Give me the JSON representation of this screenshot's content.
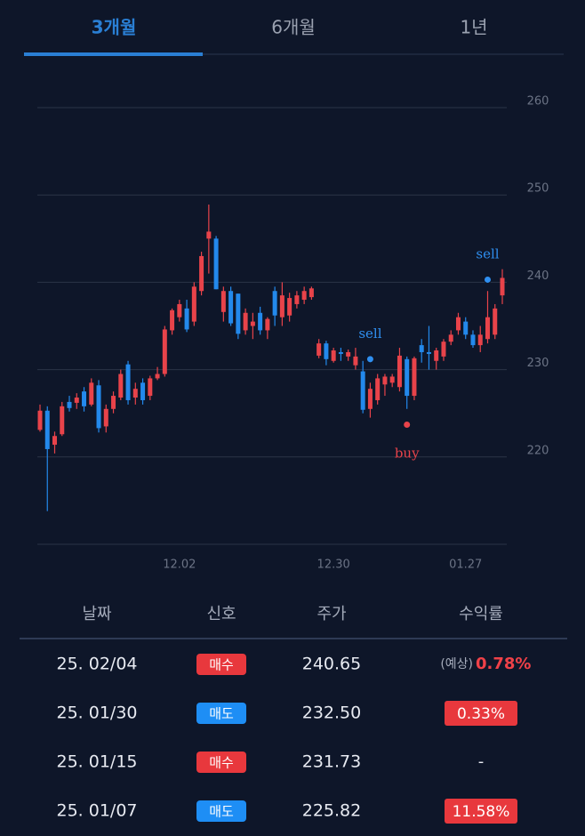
{
  "tabs": [
    "3개월",
    "6개월",
    "1년"
  ],
  "active_tab": 0,
  "chart_data": {
    "type": "candlestick",
    "up_color": "#e8434a",
    "down_color": "#2389ec",
    "ylim": [
      210,
      260
    ],
    "yticks": [
      220,
      230,
      240,
      250,
      260
    ],
    "grid": true,
    "categories": [
      null,
      null,
      null,
      null,
      null,
      null,
      null,
      null,
      null,
      null,
      null,
      null,
      null,
      null,
      null,
      null,
      null,
      null,
      null,
      "12.02",
      null,
      null,
      null,
      null,
      null,
      null,
      null,
      null,
      null,
      null,
      null,
      null,
      null,
      null,
      null,
      null,
      null,
      null,
      null,
      null,
      "12.30",
      null,
      null,
      null,
      null,
      null,
      null,
      null,
      null,
      null,
      null,
      null,
      null,
      null,
      null,
      null,
      null,
      null,
      "01.27",
      null,
      null,
      null,
      null,
      null
    ],
    "open": [
      223.1,
      225.3,
      221.4,
      222.6,
      226.3,
      226.2,
      227.5,
      226.0,
      228.2,
      223.5,
      225.5,
      226.8,
      230.6,
      226.8,
      228.5,
      227.0,
      229.0,
      229.5,
      234.5,
      236.0,
      237.0,
      235.5,
      239.0,
      245.0,
      245.0,
      236.6,
      239.0,
      238.7,
      234.5,
      235.0,
      236.5,
      234.5,
      239.0,
      236.0,
      236.2,
      237.5,
      238.0,
      238.3,
      231.6,
      233.0,
      231.0,
      232.0,
      231.5,
      230.5,
      229.8,
      225.5,
      226.5,
      228.3,
      228.5,
      228.0,
      231.2,
      227.0,
      232.8,
      232.0,
      231.0,
      231.5,
      233.2,
      234.5,
      235.5,
      234.0,
      232.8,
      233.5,
      234.0,
      238.5
    ],
    "high": [
      226.0,
      225.8,
      222.9,
      226.3,
      227.0,
      227.3,
      228.0,
      229.0,
      228.8,
      226.0,
      227.5,
      230.0,
      231.0,
      228.5,
      229.0,
      229.3,
      230.3,
      235.0,
      237.0,
      238.0,
      238.0,
      240.0,
      243.5,
      248.9,
      245.3,
      239.5,
      239.5,
      238.7,
      237.0,
      236.5,
      237.2,
      236.0,
      239.5,
      240.0,
      238.8,
      239.0,
      239.5,
      239.5,
      233.5,
      233.3,
      232.5,
      232.5,
      232.3,
      232.5,
      231.0,
      228.5,
      229.5,
      229.5,
      229.5,
      232.5,
      231.5,
      231.5,
      233.5,
      235.0,
      232.5,
      233.5,
      234.5,
      236.5,
      236.0,
      234.5,
      235.0,
      239.0,
      237.5,
      241.5
    ],
    "low": [
      222.9,
      213.8,
      220.4,
      222.4,
      225.2,
      225.5,
      225.2,
      225.8,
      222.8,
      222.8,
      225.0,
      226.5,
      226.0,
      226.0,
      226.0,
      226.5,
      228.8,
      229.2,
      234.0,
      235.5,
      234.3,
      235.0,
      238.5,
      241.0,
      239.2,
      235.5,
      235.0,
      233.5,
      234.0,
      233.5,
      234.0,
      233.5,
      235.0,
      235.0,
      235.5,
      237.0,
      237.5,
      238.0,
      231.3,
      230.5,
      230.8,
      231.0,
      231.0,
      230.0,
      225.0,
      224.5,
      226.0,
      227.0,
      228.0,
      227.5,
      225.5,
      226.5,
      230.8,
      230.0,
      230.0,
      231.0,
      232.8,
      234.0,
      233.5,
      232.5,
      232.0,
      233.0,
      233.5,
      237.5
    ],
    "close": [
      225.3,
      220.9,
      222.4,
      225.8,
      225.6,
      226.8,
      225.8,
      228.5,
      223.3,
      225.5,
      227.0,
      229.5,
      226.5,
      227.8,
      226.5,
      229.0,
      229.5,
      234.6,
      236.8,
      237.5,
      234.6,
      239.5,
      243.0,
      245.8,
      239.2,
      239.0,
      235.3,
      234.1,
      236.5,
      235.5,
      234.5,
      235.8,
      236.2,
      238.5,
      238.2,
      238.5,
      239.0,
      239.3,
      233.0,
      231.2,
      232.2,
      231.8,
      232.0,
      231.5,
      225.4,
      227.8,
      229.0,
      229.2,
      229.2,
      231.6,
      227.0,
      231.3,
      232.0,
      231.8,
      232.2,
      233.2,
      234.0,
      236.0,
      234.0,
      232.8,
      234.0,
      236.0,
      237.0,
      240.5
    ],
    "signals": [
      {
        "label": "sell",
        "index": 45,
        "value": 231.2,
        "color": "#2f8ff0"
      },
      {
        "label": "buy",
        "index": 50,
        "value": 223.7,
        "color": "#e8434a"
      },
      {
        "label": "sell",
        "index": 61,
        "value": 240.3,
        "color": "#2f8ff0"
      }
    ]
  },
  "table": {
    "columns": [
      "날짜",
      "신호",
      "주가",
      "수익률"
    ],
    "rows": [
      {
        "date": "25. 02/04",
        "signal": {
          "label": "매수",
          "color": "#e8383d"
        },
        "price": "240.65",
        "return": {
          "prefix": "(예상)",
          "text": "0.78%",
          "badge": false
        }
      },
      {
        "date": "25. 01/30",
        "signal": {
          "label": "매도",
          "color": "#1e8ef5"
        },
        "price": "232.50",
        "return": {
          "text": "0.33%",
          "badge": true
        }
      },
      {
        "date": "25. 01/15",
        "signal": {
          "label": "매수",
          "color": "#e8383d"
        },
        "price": "231.73",
        "return": {
          "text": "-",
          "badge": false
        }
      },
      {
        "date": "25. 01/07",
        "signal": {
          "label": "매도",
          "color": "#1e8ef5"
        },
        "price": "225.82",
        "return": {
          "text": "11.58%",
          "badge": true
        }
      }
    ]
  }
}
